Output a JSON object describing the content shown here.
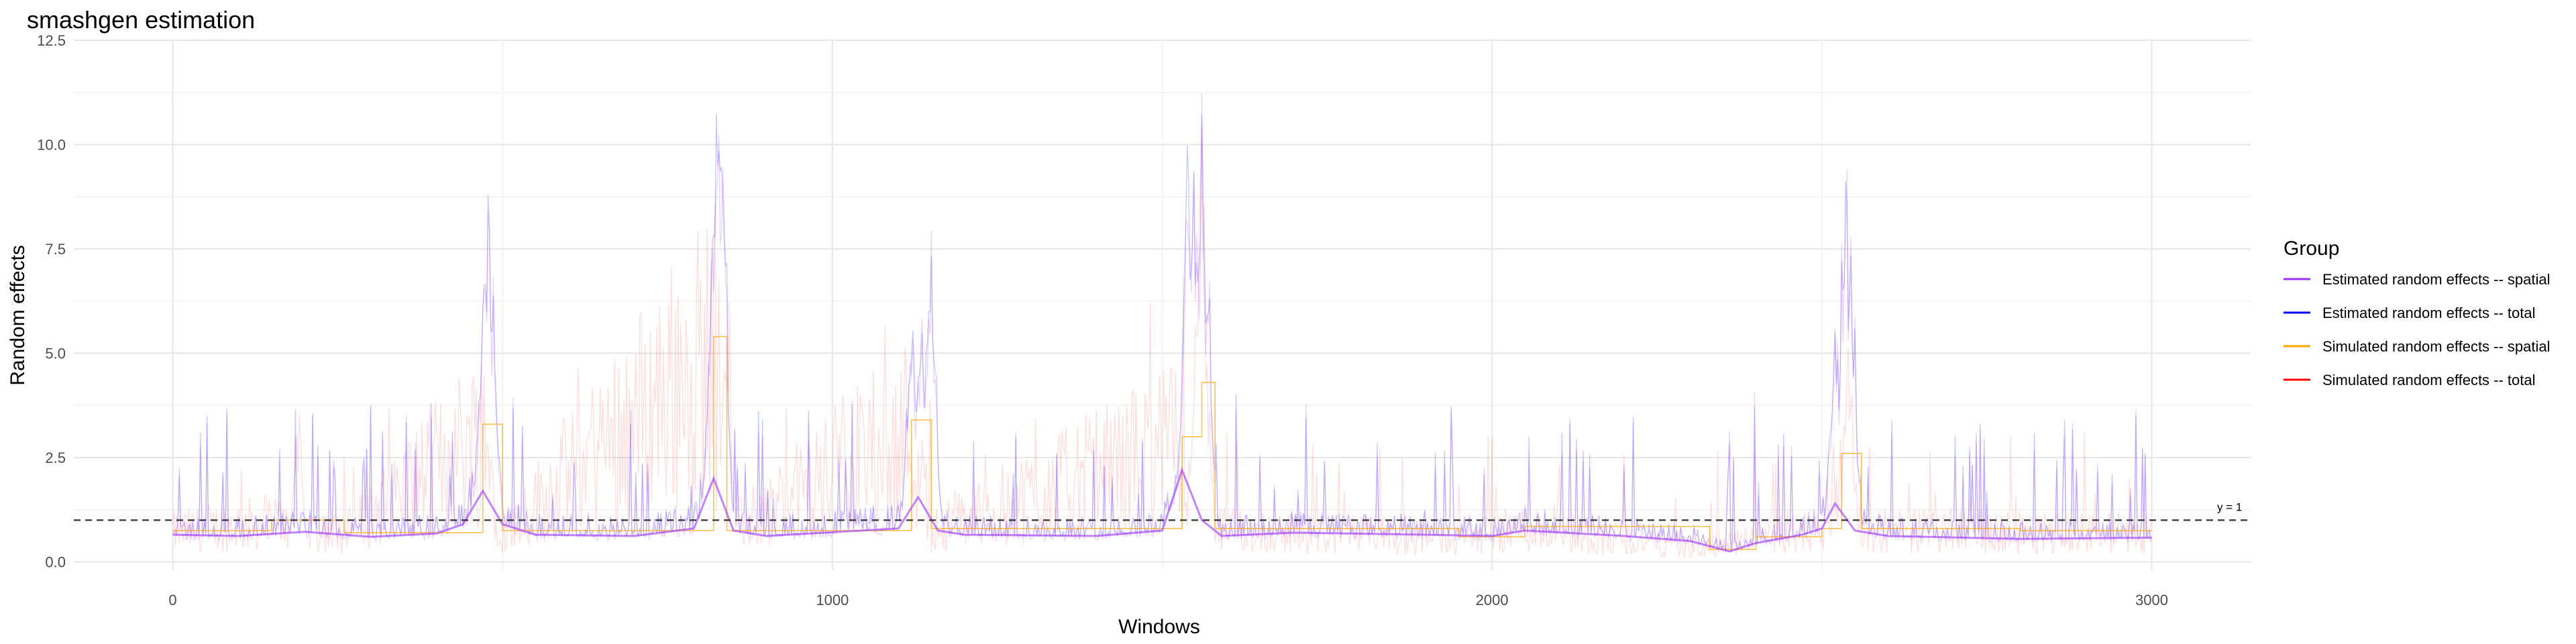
{
  "chart_data": {
    "type": "line",
    "title": "smashgen estimation",
    "xlabel": "Windows",
    "ylabel": "Random effects",
    "xlim": [
      -150,
      3150
    ],
    "ylim": [
      -0.2,
      12.5
    ],
    "x_ticks": [
      0,
      1000,
      2000,
      3000
    ],
    "y_ticks": [
      0.0,
      2.5,
      5.0,
      7.5,
      10.0,
      12.5
    ],
    "x_tick_labels": [
      "0",
      "1000",
      "2000",
      "3000"
    ],
    "y_tick_labels": [
      "0.0",
      "2.5",
      "5.0",
      "7.5",
      "10.0",
      "12.5"
    ],
    "grid": true,
    "legend": {
      "title": "Group",
      "position": "right",
      "entries": [
        {
          "label": "Estimated random effects -- spatial",
          "color": "#9b30ff"
        },
        {
          "label": "Estimated random effects -- total",
          "color": "#0000ff"
        },
        {
          "label": "Simulated random effects -- spatial",
          "color": "#ffa500"
        },
        {
          "label": "Simulated random effects -- total",
          "color": "#ff0000"
        }
      ]
    },
    "reference_line": {
      "y": 1,
      "label": "y = 1",
      "style": "dashed"
    },
    "n_windows": 3000,
    "series": [
      {
        "name": "Estimated random effects -- spatial",
        "color": "#9b30ff",
        "kind": "smoothed",
        "x": [
          0,
          100,
          200,
          300,
          400,
          440,
          470,
          500,
          550,
          700,
          790,
          820,
          850,
          900,
          1100,
          1130,
          1160,
          1200,
          1400,
          1500,
          1530,
          1560,
          1590,
          1700,
          1900,
          2000,
          2050,
          2200,
          2300,
          2360,
          2400,
          2470,
          2500,
          2520,
          2550,
          2600,
          2800,
          3000
        ],
        "y": [
          0.65,
          0.62,
          0.72,
          0.6,
          0.68,
          0.9,
          1.7,
          0.9,
          0.65,
          0.62,
          0.8,
          2.0,
          0.75,
          0.62,
          0.8,
          1.55,
          0.75,
          0.65,
          0.62,
          0.75,
          2.2,
          1.0,
          0.62,
          0.7,
          0.65,
          0.62,
          0.75,
          0.62,
          0.5,
          0.25,
          0.45,
          0.65,
          0.8,
          1.4,
          0.75,
          0.62,
          0.55,
          0.58
        ]
      },
      {
        "name": "Simulated random effects -- spatial",
        "color": "#ffa500",
        "kind": "step",
        "x": [
          0,
          150,
          260,
          470,
          500,
          820,
          840,
          1120,
          1150,
          1530,
          1560,
          1580,
          1950,
          2050,
          2330,
          2400,
          2500,
          2530,
          2560,
          2800,
          3000
        ],
        "y": [
          0.75,
          1.0,
          0.7,
          3.3,
          0.75,
          5.4,
          0.75,
          3.4,
          0.8,
          3.0,
          4.3,
          0.8,
          0.6,
          0.85,
          0.3,
          0.6,
          0.8,
          2.6,
          0.8,
          0.75,
          0.75
        ]
      },
      {
        "name": "Estimated random effects -- total",
        "color": "#0000ff",
        "kind": "noisy",
        "peaks": [
          {
            "x": 478,
            "y": 8.5
          },
          {
            "x": 470,
            "y": 5.5
          },
          {
            "x": 485,
            "y": 7.1
          },
          {
            "x": 825,
            "y": 11.1
          },
          {
            "x": 833,
            "y": 12.0
          },
          {
            "x": 818,
            "y": 6.0
          },
          {
            "x": 1120,
            "y": 6.5
          },
          {
            "x": 1150,
            "y": 9.0
          },
          {
            "x": 1135,
            "y": 5.5
          },
          {
            "x": 1540,
            "y": 9.6
          },
          {
            "x": 1560,
            "y": 11.9
          },
          {
            "x": 1552,
            "y": 10.7
          },
          {
            "x": 1568,
            "y": 8.2
          },
          {
            "x": 2520,
            "y": 5.8
          },
          {
            "x": 2535,
            "y": 9.8
          },
          {
            "x": 2545,
            "y": 8.0
          }
        ]
      },
      {
        "name": "Simulated random effects -- total",
        "color": "#ff0000",
        "kind": "noisy",
        "peaks": [
          {
            "x": 190,
            "y": 5.1
          },
          {
            "x": 840,
            "y": 8.5
          },
          {
            "x": 1015,
            "y": 5.3
          },
          {
            "x": 1560,
            "y": 12.0
          },
          {
            "x": 2540,
            "y": 7.0
          }
        ]
      }
    ]
  }
}
